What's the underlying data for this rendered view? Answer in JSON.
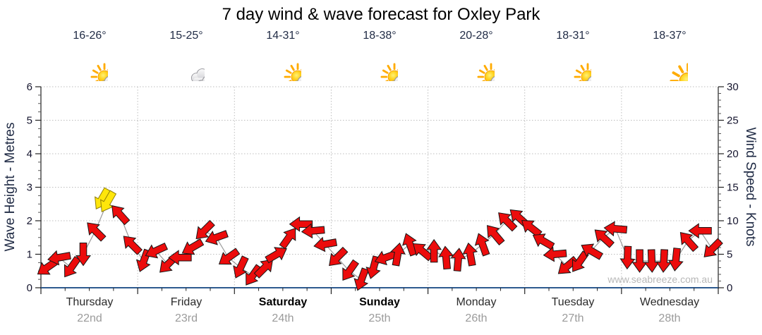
{
  "title": "7 day wind & wave forecast for Oxley Park",
  "watermark": "www.seabreeze.com.au",
  "days": [
    {
      "name": "Thursday",
      "date": "22nd",
      "temp": "16-26°",
      "icon": "partly",
      "bold": false
    },
    {
      "name": "Friday",
      "date": "23rd",
      "temp": "15-25°",
      "icon": "cloudy",
      "bold": false
    },
    {
      "name": "Saturday",
      "date": "24th",
      "temp": "14-31°",
      "icon": "partly",
      "bold": true
    },
    {
      "name": "Sunday",
      "date": "25th",
      "temp": "18-38°",
      "icon": "partly",
      "bold": true
    },
    {
      "name": "Monday",
      "date": "26th",
      "temp": "20-28°",
      "icon": "partly",
      "bold": false
    },
    {
      "name": "Tuesday",
      "date": "27th",
      "temp": "18-31°",
      "icon": "partly",
      "bold": false
    },
    {
      "name": "Wednesday",
      "date": "28th",
      "temp": "18-37°",
      "icon": "sunny",
      "bold": false
    }
  ],
  "axes": {
    "left": {
      "title": "Wave Height - Metres",
      "ticks": [
        0,
        1,
        2,
        3,
        4,
        5,
        6
      ],
      "max": 6
    },
    "right": {
      "title": "Wind Speed - Knots",
      "ticks": [
        0,
        5,
        10,
        15,
        20,
        25,
        30
      ],
      "max": 30
    }
  },
  "colors": {
    "arrow_red": "#ec0c0c",
    "arrow_outline": "#161616",
    "highlight_yellow": "#ffe60a",
    "highlight_outline": "#8f7d08",
    "xaxis_blue": "#2e5a8f",
    "grid_gray": "#bdbdbd",
    "line_gray": "#9a9a9a"
  },
  "chart_data": {
    "type": "wind-arrow-timeseries",
    "title": "7 day wind & wave forecast for Oxley Park",
    "ylabel_left": "Wave Height - Metres",
    "ylabel_right": "Wind Speed - Knots",
    "ylim_left_metres": [
      0,
      6
    ],
    "ylim_right_knots": [
      0,
      30
    ],
    "grid": true,
    "x_categories": [
      "Thursday 22nd",
      "Friday 23rd",
      "Saturday 24th",
      "Sunday 25th",
      "Monday 26th",
      "Tuesday 27th",
      "Wednesday 28th"
    ],
    "samples_per_day": 8,
    "sample_interval_hours": 3,
    "wave_height_series_visible": false,
    "highlight_yellow_index": 5,
    "wind_knots": [
      3.0,
      4.5,
      3.0,
      5.0,
      8.5,
      12.8,
      11.0,
      6.5,
      4.0,
      5.5,
      3.5,
      4.5,
      6.0,
      8.5,
      7.5,
      4.5,
      3.0,
      1.8,
      3.0,
      5.0,
      7.5,
      9.5,
      8.5,
      6.5,
      4.5,
      2.5,
      1.2,
      3.0,
      4.5,
      5.0,
      6.5,
      5.5,
      5.5,
      4.5,
      4.2,
      5.0,
      6.5,
      8.0,
      10.0,
      10.5,
      9.0,
      7.0,
      5.0,
      3.2,
      3.8,
      5.5,
      7.5,
      8.8,
      4.5,
      4.0,
      4.0,
      4.0,
      4.2,
      7.0,
      8.5,
      5.8
    ],
    "wind_dir_deg": [
      235,
      260,
      215,
      180,
      315,
      210,
      318,
      315,
      200,
      245,
      225,
      270,
      240,
      225,
      250,
      235,
      205,
      215,
      45,
      60,
      35,
      270,
      265,
      260,
      225,
      215,
      200,
      195,
      250,
      10,
      340,
      310,
      0,
      355,
      5,
      350,
      340,
      320,
      315,
      312,
      308,
      300,
      265,
      230,
      215,
      300,
      312,
      275,
      182,
      180,
      178,
      183,
      186,
      318,
      270,
      225
    ]
  }
}
